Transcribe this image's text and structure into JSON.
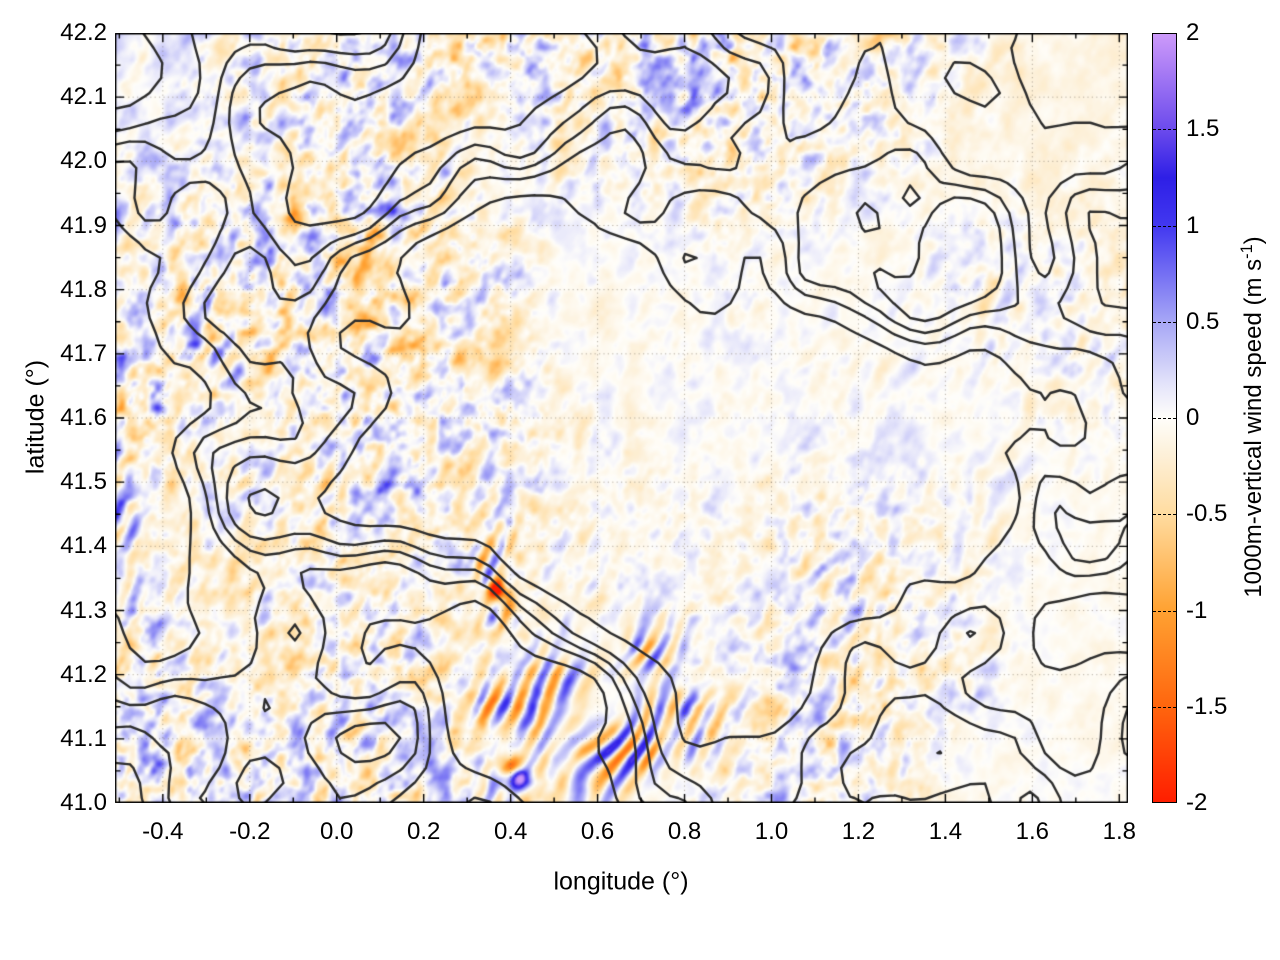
{
  "chart_data": {
    "type": "heatmap",
    "title": "",
    "xlabel": "longitude (°)",
    "ylabel": "latitude (°)",
    "xlim": [
      -0.51,
      1.82
    ],
    "ylim": [
      41.0,
      42.2
    ],
    "grid": {
      "style": "dotted",
      "color": "rgba(125,115,100,0.55)",
      "on_major_ticks": true
    },
    "x_tick_values": [
      -0.4,
      -0.2,
      0.0,
      0.2,
      0.4,
      0.6,
      0.8,
      1.0,
      1.2,
      1.4,
      1.6,
      1.8
    ],
    "x_tick_labels": [
      "-0.4",
      "-0.2",
      "0.0",
      "0.2",
      "0.4",
      "0.6",
      "0.8",
      "1.0",
      "1.2",
      "1.4",
      "1.6",
      "1.8"
    ],
    "x_minor_tick_step": 0.1,
    "y_tick_values": [
      41.0,
      41.1,
      41.2,
      41.3,
      41.4,
      41.5,
      41.6,
      41.7,
      41.8,
      41.9,
      42.0,
      42.1,
      42.2
    ],
    "y_tick_labels": [
      "41.0",
      "41.1",
      "41.2",
      "41.3",
      "41.4",
      "41.5",
      "41.6",
      "41.7",
      "41.8",
      "41.9",
      "42.0",
      "42.1",
      "42.2"
    ],
    "y_minor_tick_step": 0.05,
    "plot_border_color": "#000000",
    "background_color": "#ffffff",
    "colorbar": {
      "label_pre": "1000m-vertical wind speed (m s",
      "label_sup": "-1",
      "label_post": ")",
      "min": -2,
      "max": 2,
      "tick_values": [
        2,
        1.5,
        1,
        0.5,
        0,
        -0.5,
        -1,
        -1.5,
        -2
      ],
      "tick_labels": [
        "2",
        "1.5",
        "1",
        "0.5",
        "0",
        "-0.5",
        "-1",
        "-1.5",
        "-2"
      ],
      "gradient_stops": [
        {
          "value": -2.0,
          "color": "#ff1e00"
        },
        {
          "value": -1.5,
          "color": "#ff660e"
        },
        {
          "value": -1.0,
          "color": "#ffa232"
        },
        {
          "value": -0.5,
          "color": "#ffdca0"
        },
        {
          "value": -0.15,
          "color": "#fdf3e0"
        },
        {
          "value": 0.0,
          "color": "#fffefa"
        },
        {
          "value": 0.15,
          "color": "#e8e8fa"
        },
        {
          "value": 0.5,
          "color": "#a7a7f6"
        },
        {
          "value": 1.0,
          "color": "#4238f0"
        },
        {
          "value": 1.25,
          "color": "#2e1fe6"
        },
        {
          "value": 1.5,
          "color": "#6b4aec"
        },
        {
          "value": 2.0,
          "color": "#cd9afa"
        }
      ]
    },
    "field": {
      "units": "m s-1",
      "description": "Turbulent vertical-wind-speed field: near-zero cream/periwinkle speckle background with diagonal (SW-NE) mountain-wave trains of alternating updraft (blue) and downdraft (orange) streaks; calmer fine texture on the eastern side.",
      "wave_trains": [
        {
          "lon": 0.45,
          "lat": 41.07,
          "rx": 0.22,
          "ry": 0.1,
          "amp": 1.6
        },
        {
          "lon": 0.6,
          "lat": 41.21,
          "rx": 0.2,
          "ry": 0.12,
          "amp": 1.3
        },
        {
          "lon": 0.33,
          "lat": 41.35,
          "rx": 0.17,
          "ry": 0.1,
          "amp": 1.1
        },
        {
          "lon": 0.76,
          "lat": 41.12,
          "rx": 0.13,
          "ry": 0.1,
          "amp": 1.2
        },
        {
          "lon": -0.09,
          "lat": 41.9,
          "rx": 0.11,
          "ry": 0.08,
          "amp": 1.5
        },
        {
          "lon": -0.45,
          "lat": 41.45,
          "rx": 0.13,
          "ry": 0.22,
          "amp": 0.8
        },
        {
          "lon": -0.3,
          "lat": 41.66,
          "rx": 0.14,
          "ry": 0.09,
          "amp": 0.8
        },
        {
          "lon": 0.05,
          "lat": 41.45,
          "rx": 0.28,
          "ry": 0.16,
          "amp": 0.6
        },
        {
          "lon": 1.15,
          "lat": 41.33,
          "rx": 0.16,
          "ry": 0.1,
          "amp": 0.5
        },
        {
          "lon": 0.17,
          "lat": 41.88,
          "rx": 0.3,
          "ry": 0.18,
          "amp": 0.4
        },
        {
          "lon": -0.5,
          "lat": 41.85,
          "rx": 0.12,
          "ry": 0.25,
          "amp": 0.6
        },
        {
          "lon": 1.45,
          "lat": 41.62,
          "rx": 0.3,
          "ry": 0.25,
          "amp": 0.3
        }
      ],
      "extreme_points": [
        {
          "lon": 0.42,
          "lat": 41.04,
          "value": 2.0
        },
        {
          "lon": 0.4,
          "lat": 41.06,
          "value": -1.9
        },
        {
          "lon": 0.37,
          "lat": 41.33,
          "value": -2.0
        },
        {
          "lon": -0.1,
          "lat": 41.91,
          "value": -1.6
        }
      ]
    },
    "contours": {
      "description": "Black terrain-elevation contour overlay (meandering closed orographic contours, dense over mountain massifs, sparse over the central valley).",
      "color": "#2d2d2d",
      "line_width": 2.4,
      "levels": 5,
      "terrain_regions": [
        {
          "lon": 0.45,
          "lat": 41.12,
          "rx": 0.33,
          "ry": 0.17,
          "h": 0.4
        },
        {
          "lon": 0.12,
          "lat": 41.32,
          "rx": 0.25,
          "ry": 0.14,
          "h": 0.22
        },
        {
          "lon": -0.33,
          "lat": 41.22,
          "rx": 0.25,
          "ry": 0.18,
          "h": 0.22
        },
        {
          "lon": -0.45,
          "lat": 41.6,
          "rx": 0.18,
          "ry": 0.28,
          "h": 0.24
        },
        {
          "lon": 0.0,
          "lat": 42.05,
          "rx": 0.35,
          "ry": 0.18,
          "h": 0.26
        },
        {
          "lon": 0.65,
          "lat": 42.18,
          "rx": 0.45,
          "ry": 0.18,
          "h": 0.28
        },
        {
          "lon": 1.15,
          "lat": 41.08,
          "rx": 0.35,
          "ry": 0.14,
          "h": 0.28
        },
        {
          "lon": 1.55,
          "lat": 41.45,
          "rx": 0.35,
          "ry": 0.25,
          "h": 0.16
        },
        {
          "lon": -0.1,
          "lat": 41.85,
          "rx": 0.15,
          "ry": 0.1,
          "h": 0.15
        },
        {
          "lon": 0.8,
          "lat": 41.65,
          "rx": 0.5,
          "ry": 0.28,
          "h": -0.22
        },
        {
          "lon": 1.6,
          "lat": 42.0,
          "rx": 0.3,
          "ry": 0.2,
          "h": -0.12
        }
      ]
    }
  }
}
